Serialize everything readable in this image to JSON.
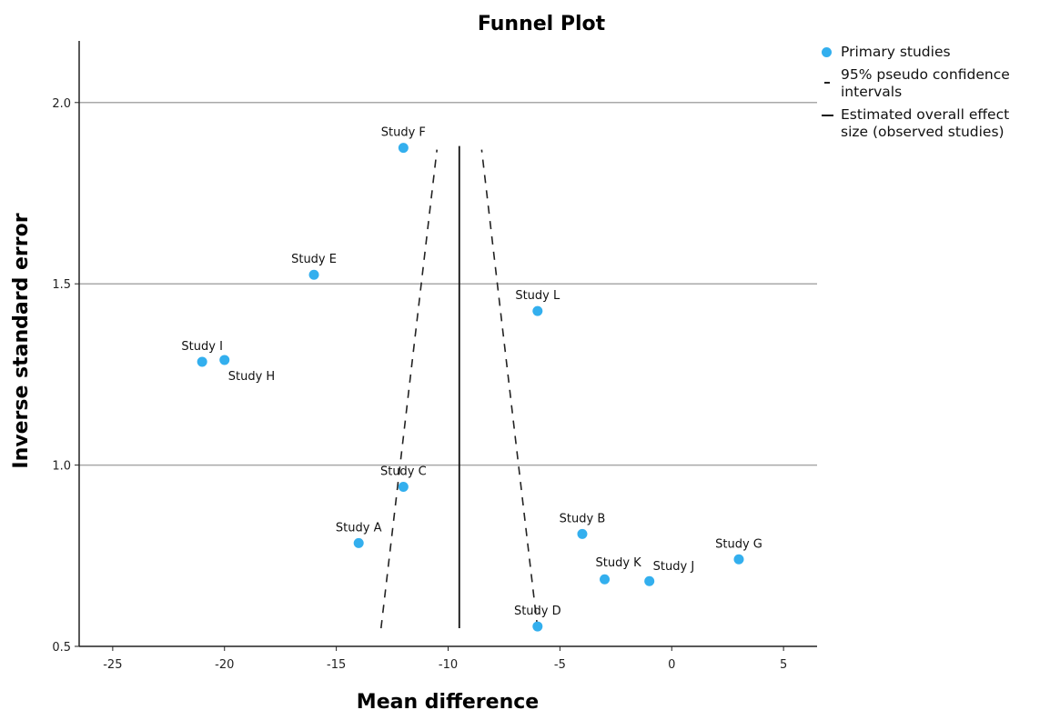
{
  "chart_data": {
    "type": "scatter",
    "title": "Funnel Plot",
    "xlabel": "Mean difference",
    "ylabel": "Inverse standard error",
    "xlim": [
      -26.5,
      6.5
    ],
    "ylim": [
      0.5,
      2.17
    ],
    "xticks": [
      -25,
      -20,
      -15,
      -10,
      -5,
      0,
      5
    ],
    "xtick_labels": [
      "-25",
      "-20",
      "-15",
      "-10",
      "-5",
      "0",
      "5"
    ],
    "yticks": [
      0.5,
      1.0,
      1.5,
      2.0
    ],
    "ytick_labels": [
      "0.5",
      "1.0",
      "1.5",
      "2.0"
    ],
    "grid": "horizontal",
    "legend_position": "right",
    "point_color": "#33afee",
    "points": [
      {
        "label": "Study A",
        "x": -14.0,
        "y": 0.785
      },
      {
        "label": "Study B",
        "x": -4.0,
        "y": 0.81
      },
      {
        "label": "Study C",
        "x": -12.0,
        "y": 0.94
      },
      {
        "label": "Study D",
        "x": -6.0,
        "y": 0.555
      },
      {
        "label": "Study E",
        "x": -16.0,
        "y": 1.525
      },
      {
        "label": "Study F",
        "x": -12.0,
        "y": 1.875
      },
      {
        "label": "Study G",
        "x": 3.0,
        "y": 0.74
      },
      {
        "label": "Study H",
        "x": -20.0,
        "y": 1.29
      },
      {
        "label": "Study I",
        "x": -21.0,
        "y": 1.285
      },
      {
        "label": "Study J",
        "x": -1.0,
        "y": 0.68
      },
      {
        "label": "Study K",
        "x": -3.0,
        "y": 0.685
      },
      {
        "label": "Study L",
        "x": -6.0,
        "y": 1.425
      }
    ],
    "pseudo_ci_lower": [
      [
        -13.0,
        0.55
      ],
      [
        -10.5,
        1.87
      ]
    ],
    "pseudo_ci_upper": [
      [
        -6.0,
        0.55
      ],
      [
        -8.5,
        1.87
      ]
    ],
    "overall_effect": {
      "x": -9.5,
      "y_range": [
        0.55,
        1.88
      ]
    },
    "legend": [
      {
        "symbol": "dot",
        "text": "Primary studies"
      },
      {
        "symbol": "dash",
        "text": "95% pseudo confidence intervals"
      },
      {
        "symbol": "line",
        "text": "Estimated overall effect size (observed studies)"
      }
    ]
  }
}
